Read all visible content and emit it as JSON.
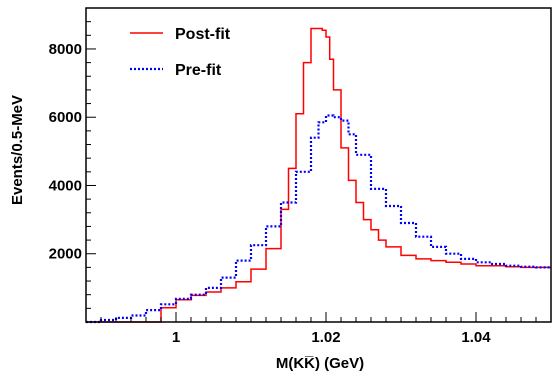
{
  "chart_data": {
    "type": "line",
    "xlabel": "M(KK̅) (GeV)",
    "ylabel": "Events/0.5-MeV",
    "xlim": [
      0.988,
      1.05
    ],
    "ylim": [
      0,
      9200
    ],
    "x_ticks": [
      1,
      1.02,
      1.04
    ],
    "x_tick_labels": [
      "1",
      "1.02",
      "1.04"
    ],
    "y_ticks": [
      2000,
      4000,
      6000,
      8000
    ],
    "y_tick_labels": [
      "2000",
      "4000",
      "6000",
      "8000"
    ],
    "grid": false,
    "legend_position": "top-left",
    "series": [
      {
        "name": "Post-fit",
        "color": "#ff0000",
        "style": "solid-step",
        "x": [
          0.988,
          0.99,
          0.992,
          0.994,
          0.995,
          0.996,
          0.998,
          1.0,
          1.002,
          1.004,
          1.006,
          1.008,
          1.01,
          1.012,
          1.014,
          1.015,
          1.016,
          1.017,
          1.018,
          1.019,
          1.0195,
          1.02,
          1.0205,
          1.021,
          1.022,
          1.023,
          1.024,
          1.025,
          1.026,
          1.027,
          1.028,
          1.03,
          1.032,
          1.034,
          1.036,
          1.038,
          1.04,
          1.042,
          1.044,
          1.046,
          1.048,
          1.05
        ],
        "y": [
          0,
          0,
          0,
          0,
          0,
          0,
          420,
          650,
          780,
          880,
          1000,
          1180,
          1550,
          2150,
          3300,
          4500,
          6100,
          7600,
          8600,
          8600,
          8550,
          8350,
          7700,
          6800,
          5100,
          4150,
          3500,
          3000,
          2700,
          2400,
          2200,
          1950,
          1850,
          1800,
          1750,
          1700,
          1650,
          1650,
          1620,
          1600,
          1600,
          1600
        ]
      },
      {
        "name": "Pre-fit",
        "color": "#0000ff",
        "style": "dotted-step",
        "x": [
          0.988,
          0.99,
          0.992,
          0.994,
          0.996,
          0.998,
          1.0,
          1.002,
          1.004,
          1.006,
          1.008,
          1.01,
          1.012,
          1.014,
          1.016,
          1.018,
          1.019,
          1.02,
          1.0205,
          1.021,
          1.022,
          1.023,
          1.024,
          1.026,
          1.028,
          1.03,
          1.032,
          1.034,
          1.036,
          1.038,
          1.04,
          1.042,
          1.044,
          1.046,
          1.048,
          1.05
        ],
        "y": [
          0,
          60,
          120,
          190,
          350,
          520,
          680,
          800,
          1000,
          1300,
          1800,
          2250,
          2800,
          3500,
          4400,
          5400,
          5850,
          6050,
          6050,
          6000,
          5900,
          5500,
          4900,
          3900,
          3400,
          2900,
          2500,
          2200,
          2000,
          1850,
          1750,
          1700,
          1650,
          1620,
          1600,
          1600
        ]
      }
    ]
  }
}
